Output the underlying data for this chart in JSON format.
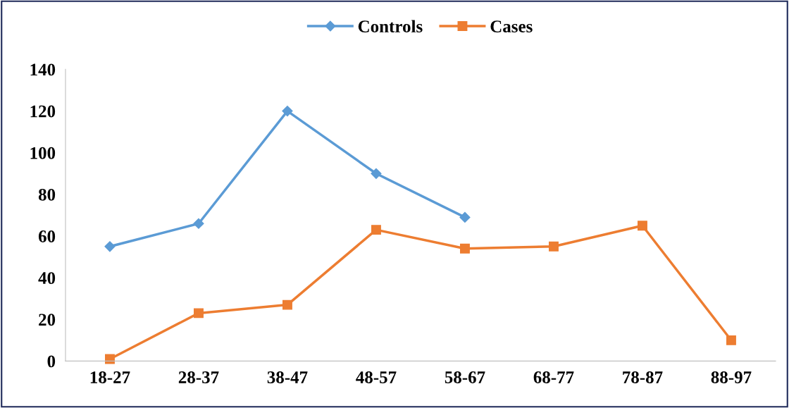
{
  "chart_data": {
    "type": "line",
    "categories": [
      "18-27",
      "28-37",
      "38-47",
      "48-57",
      "58-67",
      "68-77",
      "78-87",
      "88-97"
    ],
    "series": [
      {
        "name": "Controls",
        "color": "#5b9bd5",
        "marker": "diamond",
        "values": [
          55,
          66,
          120,
          90,
          69,
          null,
          null,
          null
        ]
      },
      {
        "name": "Cases",
        "color": "#ed7d31",
        "marker": "square",
        "values": [
          1,
          23,
          27,
          63,
          54,
          55,
          65,
          10
        ]
      }
    ],
    "ylim": [
      0,
      140
    ],
    "yticks": [
      0,
      20,
      40,
      60,
      80,
      100,
      120,
      140
    ],
    "grid": false,
    "legend": "top",
    "line_style": "solid"
  }
}
